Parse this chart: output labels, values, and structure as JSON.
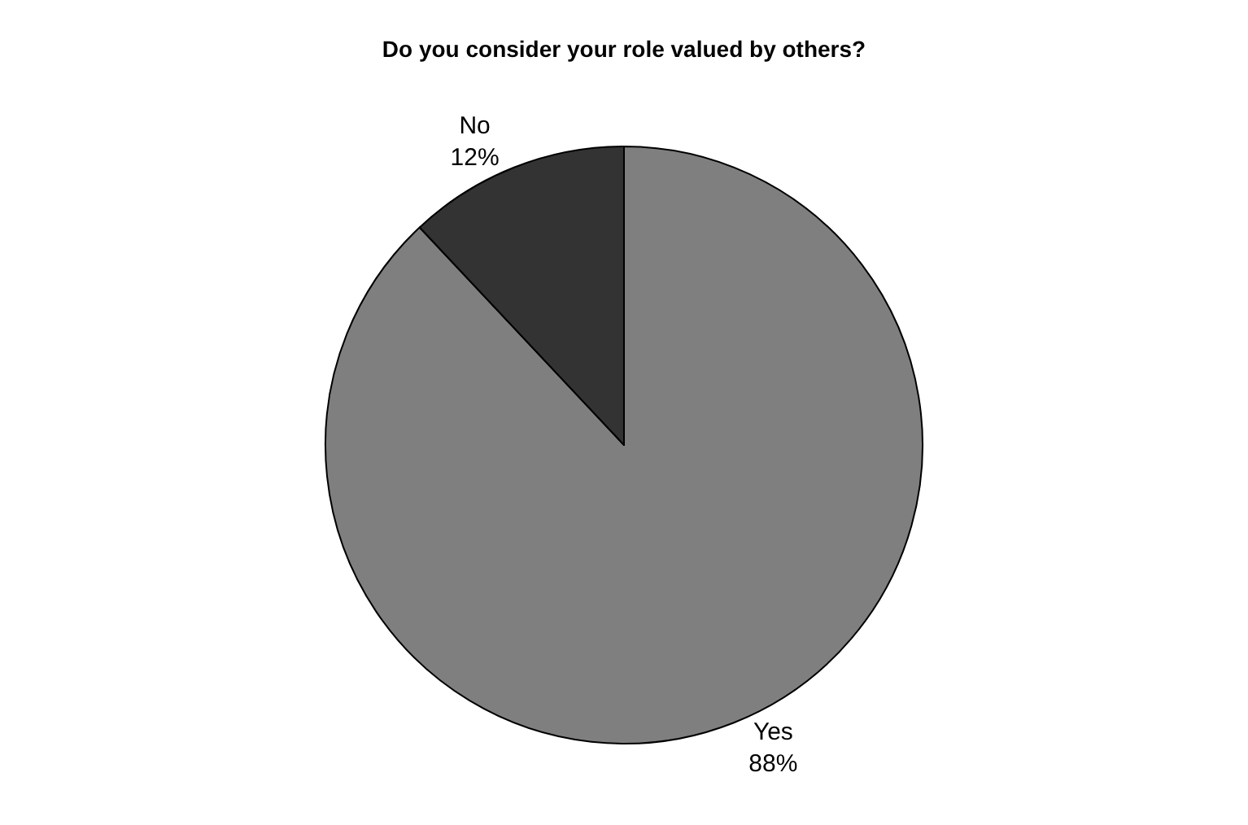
{
  "chart_data": {
    "type": "pie",
    "title": "Do you consider your role valued by others?",
    "categories": [
      "Yes",
      "No"
    ],
    "values": [
      88,
      12
    ],
    "value_labels": [
      "88%",
      "12%"
    ],
    "colors": [
      "#7f7f7f",
      "#333333"
    ],
    "legend": false
  }
}
